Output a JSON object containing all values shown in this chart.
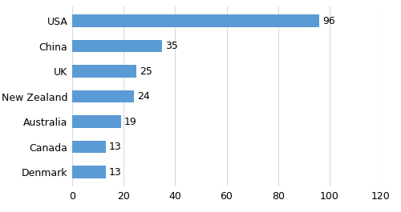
{
  "categories": [
    "Denmark",
    "Canada",
    "Australia",
    "New Zealand",
    "UK",
    "China",
    "USA"
  ],
  "values": [
    13,
    13,
    19,
    24,
    25,
    35,
    96
  ],
  "bar_color": "#5b9bd5",
  "xlim": [
    0,
    120
  ],
  "xticks": [
    0,
    20,
    40,
    60,
    80,
    100,
    120
  ],
  "bar_height": 0.5,
  "value_labels": [
    13,
    13,
    19,
    24,
    25,
    35,
    96
  ],
  "grid_color": "#d9d9d9",
  "background_color": "#ffffff",
  "label_fontsize": 9,
  "tick_fontsize": 9
}
